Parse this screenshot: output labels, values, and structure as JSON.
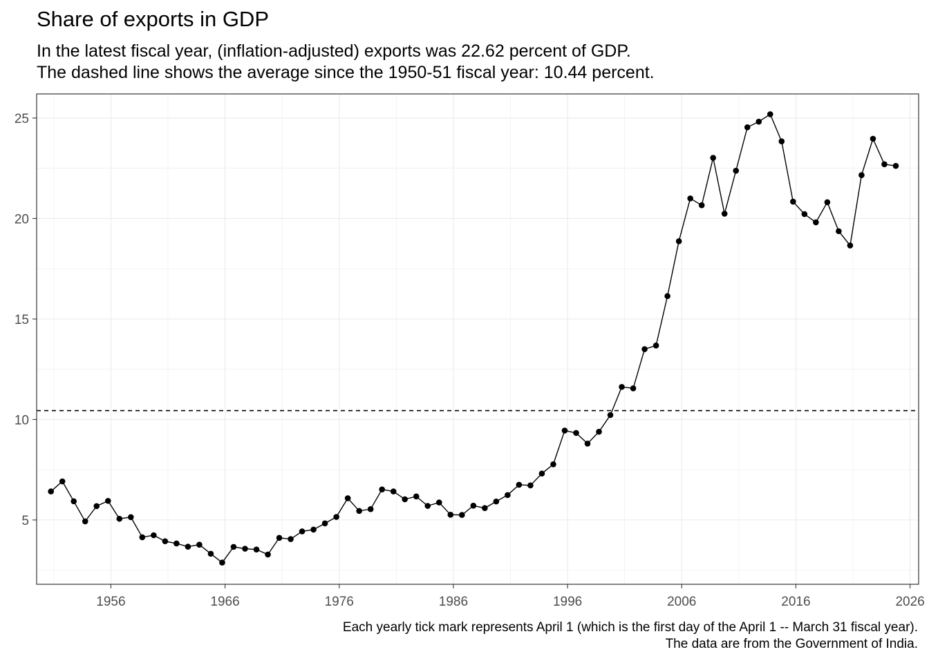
{
  "chart_data": {
    "type": "line",
    "title": "Share of exports in GDP",
    "subtitle_lines": [
      "In the latest fiscal year, (inflation-adjusted) exports was 22.62 percent of GDP.",
      "The dashed line shows the average since the 1950-51 fiscal year: 10.44 percent."
    ],
    "caption_lines": [
      "Each yearly tick mark represents April 1 (which is the first day of the April 1 -- March 31 fiscal year).",
      "The data are from the Government of India."
    ],
    "xlabel": "",
    "ylabel": "",
    "x_ticks": [
      "1956",
      "1966",
      "1976",
      "1986",
      "1996",
      "2006",
      "2016",
      "2026"
    ],
    "y_ticks": [
      "5",
      "10",
      "15",
      "20",
      "25"
    ],
    "xlim": [
      "1949-10-01",
      "2027-01-01"
    ],
    "ylim": [
      1.8,
      26.2
    ],
    "grid": true,
    "markers": true,
    "average_line": {
      "value": 10.44,
      "style": "dashed"
    },
    "series": [
      {
        "points": [
          {
            "x": "1951-01-01",
            "y": 6.42
          },
          {
            "x": "1952-01-01",
            "y": 6.92
          },
          {
            "x": "1953-01-01",
            "y": 5.93
          },
          {
            "x": "1954-01-01",
            "y": 4.93
          },
          {
            "x": "1955-01-01",
            "y": 5.69
          },
          {
            "x": "1956-01-01",
            "y": 5.95
          },
          {
            "x": "1957-01-01",
            "y": 5.06
          },
          {
            "x": "1958-01-01",
            "y": 5.14
          },
          {
            "x": "1959-01-01",
            "y": 4.14
          },
          {
            "x": "1960-01-01",
            "y": 4.24
          },
          {
            "x": "1961-01-01",
            "y": 3.94
          },
          {
            "x": "1962-01-01",
            "y": 3.83
          },
          {
            "x": "1963-01-01",
            "y": 3.67
          },
          {
            "x": "1964-01-01",
            "y": 3.77
          },
          {
            "x": "1965-01-01",
            "y": 3.32
          },
          {
            "x": "1966-01-01",
            "y": 2.88
          },
          {
            "x": "1967-01-01",
            "y": 3.66
          },
          {
            "x": "1968-01-01",
            "y": 3.57
          },
          {
            "x": "1969-01-01",
            "y": 3.53
          },
          {
            "x": "1970-01-01",
            "y": 3.28
          },
          {
            "x": "1971-01-01",
            "y": 4.11
          },
          {
            "x": "1972-01-01",
            "y": 4.05
          },
          {
            "x": "1973-01-01",
            "y": 4.43
          },
          {
            "x": "1974-01-01",
            "y": 4.52
          },
          {
            "x": "1975-01-01",
            "y": 4.83
          },
          {
            "x": "1976-01-01",
            "y": 5.15
          },
          {
            "x": "1977-01-01",
            "y": 6.08
          },
          {
            "x": "1978-01-01",
            "y": 5.45
          },
          {
            "x": "1979-01-01",
            "y": 5.54
          },
          {
            "x": "1980-01-01",
            "y": 6.52
          },
          {
            "x": "1981-01-01",
            "y": 6.42
          },
          {
            "x": "1982-01-01",
            "y": 6.03
          },
          {
            "x": "1983-01-01",
            "y": 6.17
          },
          {
            "x": "1984-01-01",
            "y": 5.7
          },
          {
            "x": "1985-01-01",
            "y": 5.87
          },
          {
            "x": "1986-01-01",
            "y": 5.26
          },
          {
            "x": "1987-01-01",
            "y": 5.25
          },
          {
            "x": "1988-01-01",
            "y": 5.71
          },
          {
            "x": "1989-01-01",
            "y": 5.59
          },
          {
            "x": "1990-01-01",
            "y": 5.92
          },
          {
            "x": "1991-01-01",
            "y": 6.24
          },
          {
            "x": "1992-01-01",
            "y": 6.75
          },
          {
            "x": "1993-01-01",
            "y": 6.72
          },
          {
            "x": "1994-01-01",
            "y": 7.31
          },
          {
            "x": "1995-01-01",
            "y": 7.77
          },
          {
            "x": "1996-01-01",
            "y": 9.45
          },
          {
            "x": "1997-01-01",
            "y": 9.33
          },
          {
            "x": "1998-01-01",
            "y": 8.8
          },
          {
            "x": "1999-01-01",
            "y": 9.39
          },
          {
            "x": "2000-01-01",
            "y": 10.22
          },
          {
            "x": "2001-01-01",
            "y": 11.62
          },
          {
            "x": "2002-01-01",
            "y": 11.55
          },
          {
            "x": "2003-01-01",
            "y": 13.5
          },
          {
            "x": "2004-01-01",
            "y": 13.68
          },
          {
            "x": "2005-01-01",
            "y": 16.14
          },
          {
            "x": "2006-01-01",
            "y": 18.87
          },
          {
            "x": "2007-01-01",
            "y": 21.0
          },
          {
            "x": "2008-01-01",
            "y": 20.66
          },
          {
            "x": "2009-01-01",
            "y": 23.02
          },
          {
            "x": "2010-01-01",
            "y": 20.24
          },
          {
            "x": "2011-01-01",
            "y": 22.38
          },
          {
            "x": "2012-01-01",
            "y": 24.54
          },
          {
            "x": "2013-01-01",
            "y": 24.82
          },
          {
            "x": "2014-01-01",
            "y": 25.19
          },
          {
            "x": "2015-01-01",
            "y": 23.84
          },
          {
            "x": "2016-01-01",
            "y": 20.84
          },
          {
            "x": "2017-01-01",
            "y": 20.22
          },
          {
            "x": "2018-01-01",
            "y": 19.81
          },
          {
            "x": "2019-01-01",
            "y": 20.81
          },
          {
            "x": "2020-01-01",
            "y": 19.37
          },
          {
            "x": "2021-01-01",
            "y": 18.66
          },
          {
            "x": "2022-01-01",
            "y": 22.16
          },
          {
            "x": "2023-01-01",
            "y": 23.97
          },
          {
            "x": "2024-01-01",
            "y": 22.7
          },
          {
            "x": "2025-01-01",
            "y": 22.62
          }
        ]
      }
    ]
  },
  "colors": {
    "line": "#000000",
    "grid": "#ebebeb",
    "panel_border": "#333333",
    "tick_text": "#4d4d4d",
    "background": "#ffffff"
  }
}
